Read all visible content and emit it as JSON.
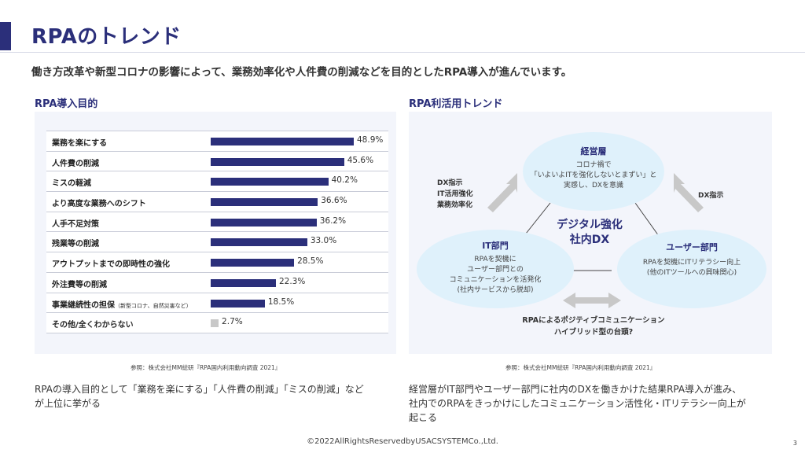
{
  "title": "RPAのトレンド",
  "lead": "働き方改革や新型コロナの影響によって、業務効率化や人件費の削減などを目的としたRPA導入が進んでいます。",
  "left": {
    "heading": "RPA導入目的",
    "source": "参照：株式会社MM総研『RPA国内利用動向調査 2021』",
    "caption_lines": [
      "RPAの導入目的として「業務を楽にする」「人件費の削減」「ミスの削減」など",
      "が上位に挙がる"
    ]
  },
  "chart_data": {
    "type": "bar",
    "orientation": "horizontal",
    "categories": [
      "業務を楽にする",
      "人件費の削減",
      "ミスの軽減",
      "より高度な業務へのシフト",
      "人手不足対策",
      "残業等の削減",
      "アウトプットまでの即時性の強化",
      "外注費等の削減",
      "事業継続性の担保",
      "その他/全くわからない"
    ],
    "category_notes": [
      "",
      "",
      "",
      "",
      "",
      "",
      "",
      "",
      "（新型コロナ、自然災害など）",
      ""
    ],
    "values": [
      48.9,
      45.6,
      40.2,
      36.6,
      36.2,
      33.0,
      28.5,
      22.3,
      18.5,
      2.7
    ],
    "value_labels": [
      "48.9%",
      "45.6%",
      "40.2%",
      "36.6%",
      "36.2%",
      "33.0%",
      "28.5%",
      "22.3%",
      "18.5%",
      "2.7%"
    ],
    "unit": "%",
    "xlim": [
      0,
      70
    ],
    "colors": [
      "#2b2f7a",
      "#2b2f7a",
      "#2b2f7a",
      "#2b2f7a",
      "#2b2f7a",
      "#2b2f7a",
      "#2b2f7a",
      "#2b2f7a",
      "#2b2f7a",
      "#c8c8c8"
    ],
    "grid": false,
    "legend": "none"
  },
  "right": {
    "heading": "RPA利活用トレンド",
    "top_node": {
      "title": "経営層",
      "lines": [
        "コロナ禍で",
        "「いよいよITを強化しないとまずい」と",
        "実感し、DXを意識"
      ]
    },
    "left_node": {
      "title": "IT部門",
      "lines": [
        "RPAを契機に",
        "ユーザー部門との",
        "コミュニケーションを活発化",
        "(社内サービスから脱却)"
      ]
    },
    "right_node": {
      "title": "ユーザー部門",
      "lines": [
        "RPAを契機にITリテラシー向上",
        "(他のITツールへの興味関心)"
      ]
    },
    "center_lines": [
      "デジタル強化",
      "社内DX"
    ],
    "left_arrow_lines": [
      "DX指示",
      "IT活用強化",
      "業務効率化"
    ],
    "right_arrow_label": "DX指示",
    "bottom_lines": [
      "RPAによるポジティブコミュニケーション",
      "ハイブリッド型の台頭?"
    ],
    "source": "参照：株式会社MM総研『RPA国内利用動向調査 2021』",
    "caption_lines": [
      "経営層がIT部門やユーザー部門に社内のDXを働きかけた結果RPA導入が進み、",
      "社内でのRPAをきっかけにしたコミュニケーション活性化・ITリテラシー向上が",
      "起こる"
    ]
  },
  "colors": {
    "accent": "#2b2f7a",
    "bubble": "#dff1fb",
    "panel": "#f3f5fb",
    "arrow": "#c8c8c8"
  },
  "footer": {
    "copyright": "©2022AllRightsReservedbyUSACSYSTEMCo.,Ltd.",
    "page": "3"
  }
}
